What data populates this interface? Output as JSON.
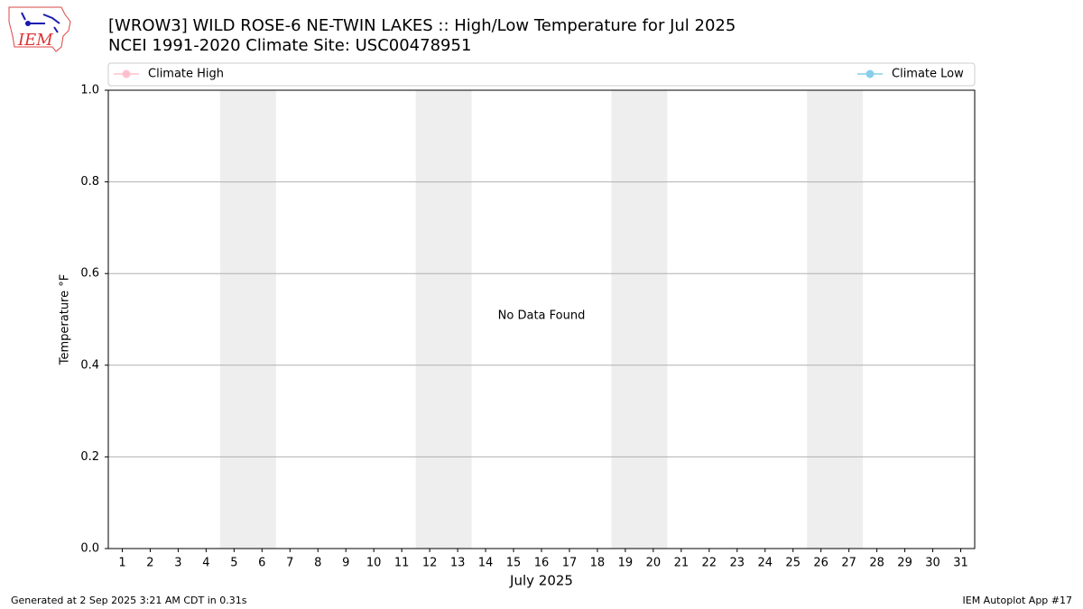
{
  "logo_text": "IEM",
  "chart_data": {
    "type": "line",
    "title": "[WROW3] WILD ROSE-6 NE-TWIN LAKES :: High/Low Temperature for Jul 2025",
    "subtitle": "NCEI 1991-2020 Climate Site: USC00478951",
    "x_label": "July 2025",
    "y_label": "Temperature °F",
    "annotation": "No Data Found",
    "series": [
      {
        "name": "Climate High",
        "color": "#ffc0cb",
        "values": []
      },
      {
        "name": "Climate Low",
        "color": "#87ceeb",
        "values": []
      }
    ],
    "xlim": [
      0.5,
      31.5
    ],
    "xticks": [
      1,
      2,
      3,
      4,
      5,
      6,
      7,
      8,
      9,
      10,
      11,
      12,
      13,
      14,
      15,
      16,
      17,
      18,
      19,
      20,
      21,
      22,
      23,
      24,
      25,
      26,
      27,
      28,
      29,
      30,
      31
    ],
    "ylim": [
      0,
      1
    ],
    "yticks": [
      {
        "value": 0,
        "label": "0.0"
      },
      0.2,
      0.4,
      0.6,
      0.8,
      {
        "value": 1,
        "label": "1.0"
      }
    ],
    "grid": "y",
    "shaded_ranges": [
      [
        4.5,
        6.5
      ],
      [
        11.5,
        13.5
      ],
      [
        18.5,
        20.5
      ],
      [
        25.5,
        27.5
      ]
    ],
    "legend": "top"
  },
  "footer": {
    "left": "Generated at 2 Sep 2025 3:21 AM CDT in 0.31s",
    "right": "IEM Autoplot App #17"
  }
}
